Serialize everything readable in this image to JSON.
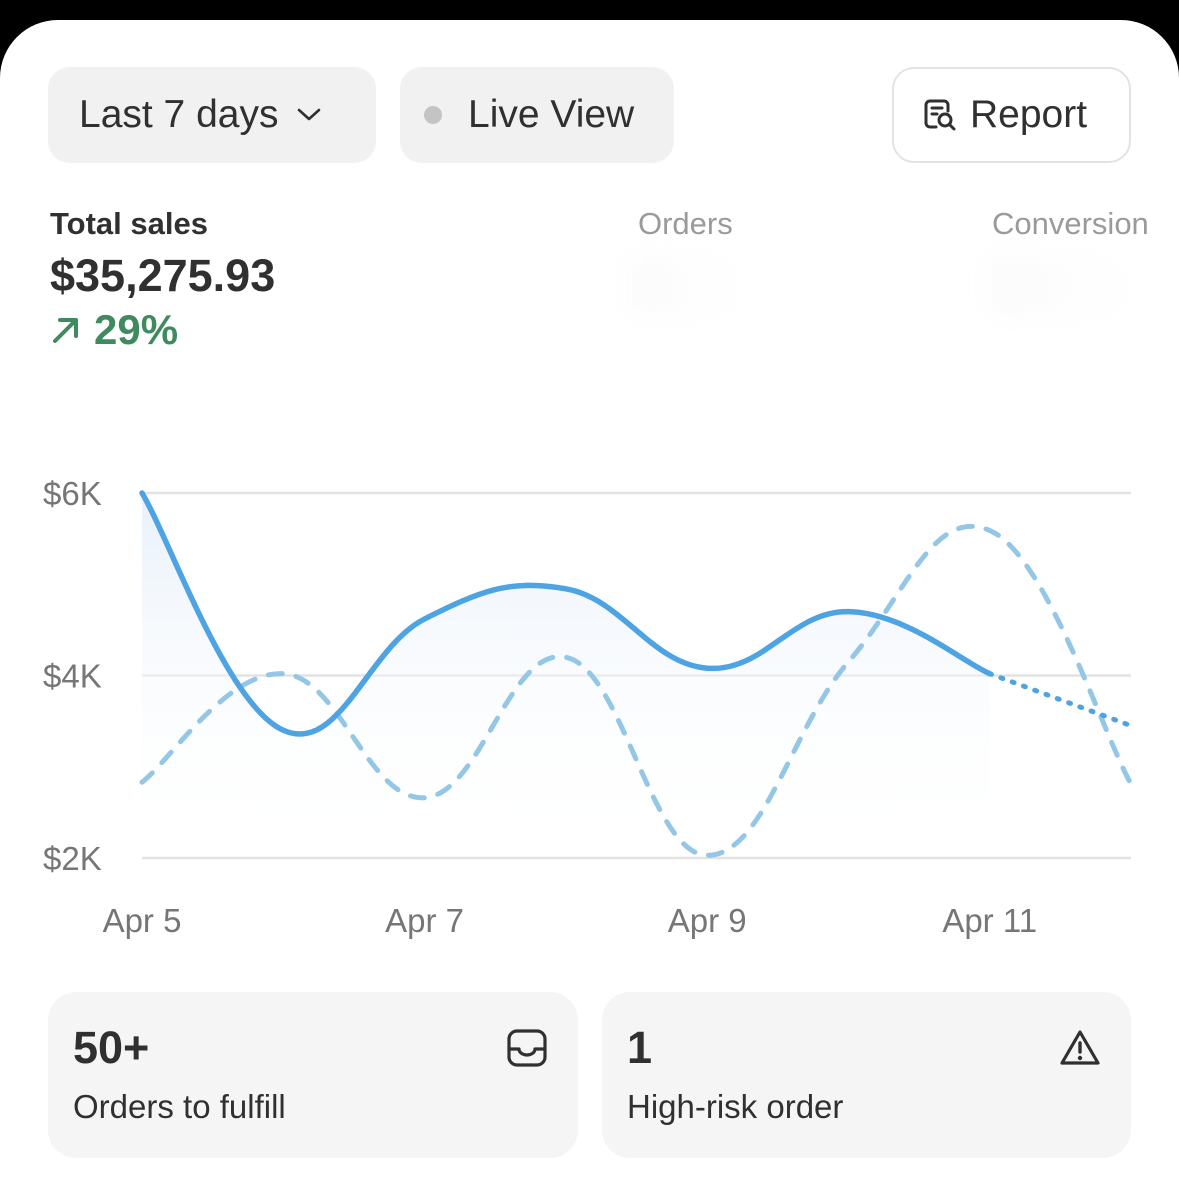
{
  "toolbar": {
    "range_label": "Last 7 days",
    "live_label": "Live View",
    "report_label": "Report"
  },
  "metrics": {
    "total_sales": {
      "label": "Total sales",
      "value": "$35,275.93",
      "change": "29%"
    },
    "orders": {
      "label": "Orders"
    },
    "conversion": {
      "label": "Conversion"
    }
  },
  "chart_data": {
    "type": "line",
    "y_ticks": [
      "$6K",
      "$4K",
      "$2K"
    ],
    "x_ticks": [
      "Apr 5",
      "Apr 7",
      "Apr 9",
      "Apr 11"
    ],
    "x": [
      "Apr 5",
      "Apr 6",
      "Apr 7",
      "Apr 8",
      "Apr 9",
      "Apr 10",
      "Apr 11",
      "Apr 12"
    ],
    "ylim": [
      2000,
      6000
    ],
    "grid": true,
    "series": [
      {
        "style": "solid",
        "color": "#4ea3e3",
        "values": [
          6000,
          3400,
          4620,
          4950,
          4080,
          4700,
          4020,
          3450
        ],
        "partial_from_index": 6
      },
      {
        "style": "dashed",
        "color": "#94c6e6",
        "values": [
          2830,
          4020,
          2660,
          4200,
          2030,
          4150,
          5590,
          2810
        ]
      }
    ]
  },
  "tiles": [
    {
      "count": "50+",
      "label": "Orders to fulfill",
      "icon": "inbox-icon"
    },
    {
      "count": "1",
      "label": "High-risk order",
      "icon": "alert-triangle-icon"
    }
  ]
}
